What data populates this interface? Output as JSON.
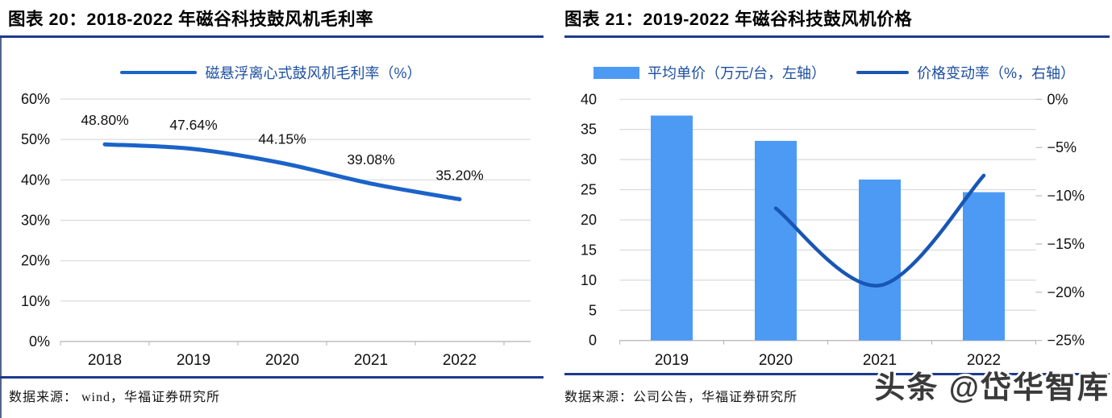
{
  "watermark": {
    "text": "头条 @岱华智库"
  },
  "colors": {
    "bar": "#4d9af5",
    "line_left": "#1b63c8",
    "line_right": "#1956b4",
    "divider": "#1e3a8f",
    "grid": "#d9d9d9",
    "axis": "#bdbdbd",
    "legend_text": "#1d4fa1",
    "text": "#111111",
    "watermark_text": "#3a3a3a"
  },
  "chart_data": [
    {
      "type": "line",
      "title": "图表 20：2018-2022 年磁谷科技鼓风机毛利率",
      "categories": [
        "2018",
        "2019",
        "2020",
        "2021",
        "2022"
      ],
      "series": [
        {
          "name": "磁悬浮离心式鼓风机毛利率（%）",
          "values": [
            48.8,
            47.64,
            44.15,
            39.08,
            35.2
          ]
        }
      ],
      "data_labels": [
        "48.80%",
        "47.64%",
        "44.15%",
        "39.08%",
        "35.20%"
      ],
      "ylim": [
        0,
        60
      ],
      "yticks": [
        [
          60,
          "60%"
        ],
        [
          50,
          "50%"
        ],
        [
          40,
          "40%"
        ],
        [
          30,
          "30%"
        ],
        [
          20,
          "20%"
        ],
        [
          10,
          "10%"
        ],
        [
          0,
          "0%"
        ]
      ],
      "grid": true,
      "legend_position": "top",
      "source": "数据来源： wind，华福证券研究所"
    },
    {
      "type": "combo-bar-line",
      "title": "图表 21：2019-2022 年磁谷科技鼓风机价格",
      "categories": [
        "2019",
        "2020",
        "2021",
        "2022"
      ],
      "series": [
        {
          "name": "平均单价（万元/台，左轴）",
          "kind": "bar",
          "axis": "left",
          "values": [
            37.3,
            33.1,
            26.7,
            24.6
          ]
        },
        {
          "name": "价格变动率（%，右轴）",
          "kind": "line",
          "axis": "right",
          "values": [
            null,
            -11.3,
            -19.3,
            -7.9
          ]
        }
      ],
      "left_ylim": [
        0,
        40
      ],
      "left_yticks": [
        [
          40,
          "40"
        ],
        [
          35,
          "35"
        ],
        [
          30,
          "30"
        ],
        [
          25,
          "25"
        ],
        [
          20,
          "20"
        ],
        [
          15,
          "15"
        ],
        [
          10,
          "10"
        ],
        [
          5,
          "5"
        ],
        [
          0,
          "0"
        ]
      ],
      "right_ylim": [
        -25,
        0
      ],
      "right_yticks": [
        [
          0,
          "0%"
        ],
        [
          -5,
          "−5%"
        ],
        [
          -10,
          "−10%"
        ],
        [
          -15,
          "−15%"
        ],
        [
          -20,
          "−20%"
        ],
        [
          -25,
          "−25%"
        ]
      ],
      "grid": true,
      "legend_position": "top",
      "source": "数据来源：公司公告，华福证券研究所"
    }
  ]
}
